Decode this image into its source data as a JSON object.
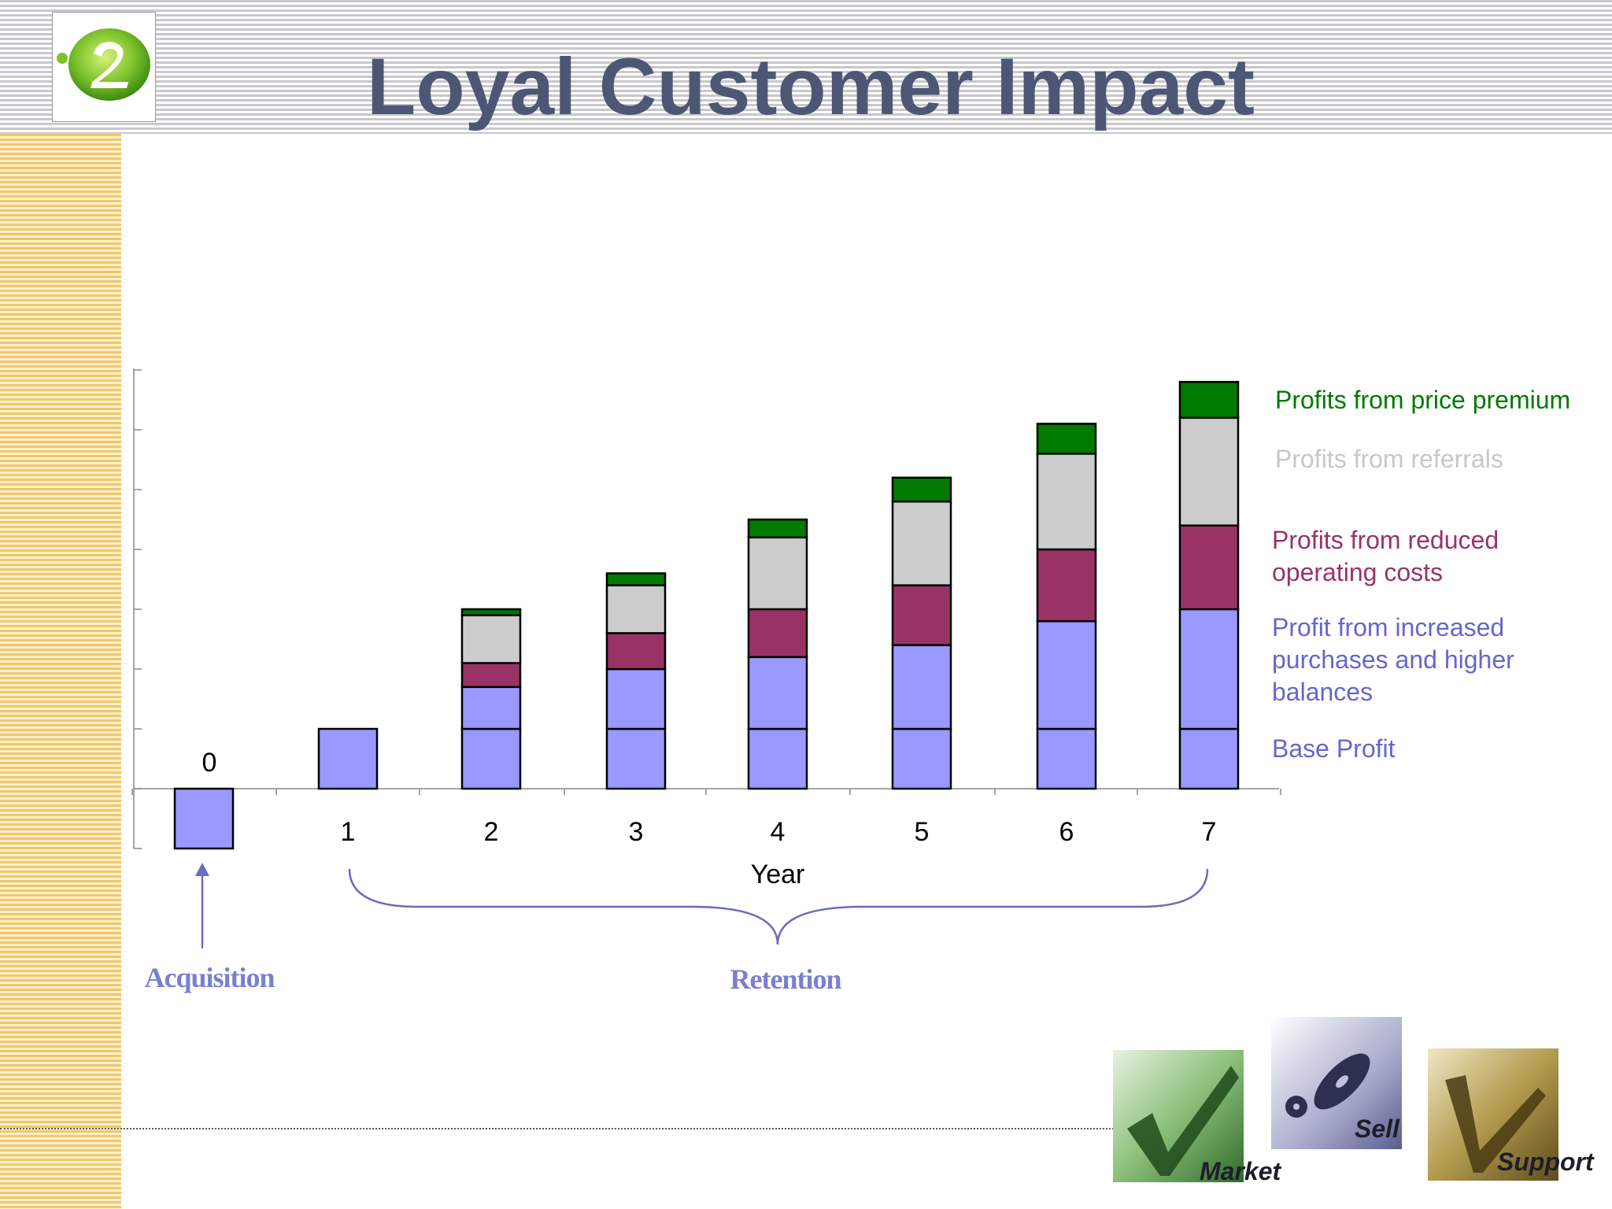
{
  "title": "Loyal Customer Impact",
  "chart_data": {
    "type": "bar",
    "stacked": true,
    "categories": [
      "0",
      "1",
      "2",
      "3",
      "4",
      "5",
      "6",
      "7"
    ],
    "xlabel": "Year",
    "ylabel": "",
    "ylim": [
      -1,
      7
    ],
    "series": [
      {
        "name": "Base Profit",
        "values": [
          -1,
          1,
          1,
          1,
          1,
          1,
          1,
          1
        ]
      },
      {
        "name": "Profit from increased purchases and higher balances",
        "values": [
          0,
          0,
          0.7,
          1.0,
          1.2,
          1.4,
          1.8,
          2.0
        ]
      },
      {
        "name": "Profits from reduced operating costs",
        "values": [
          0,
          0,
          0.4,
          0.6,
          0.8,
          1.0,
          1.2,
          1.4
        ]
      },
      {
        "name": "Profits from referrals",
        "values": [
          0,
          0,
          0.8,
          0.8,
          1.2,
          1.4,
          1.6,
          1.8
        ]
      },
      {
        "name": "Profits from price premium",
        "values": [
          0,
          0,
          0.1,
          0.2,
          0.3,
          0.4,
          0.5,
          0.6
        ]
      }
    ],
    "colors": {
      "base": "#9999ff",
      "purchases": "#9999ff",
      "operating": "#993366",
      "referrals": "#cccccc",
      "premium": "#007a00"
    },
    "grid": false,
    "legend_position": "right"
  },
  "legend": [
    {
      "line1": "Profits from price premium",
      "line2": "",
      "line3": "",
      "color": "#007a00"
    },
    {
      "line1": "Profits from referrals",
      "line2": "",
      "line3": "",
      "color": "#c8c8c8"
    },
    {
      "line1": "Profits from reduced",
      "line2": "operating costs",
      "line3": "",
      "color": "#993366"
    },
    {
      "line1": "Profit from increased",
      "line2": "purchases and higher",
      "line3": "balances",
      "color": "#6666cc"
    },
    {
      "line1": "Base Profit",
      "line2": "",
      "line3": "",
      "color": "#6666cc"
    }
  ],
  "annotations": {
    "acquisition": "Acquisition",
    "retention": "Retention"
  },
  "tiles": {
    "market": "Market",
    "sell": "Sell",
    "support": "Support"
  }
}
